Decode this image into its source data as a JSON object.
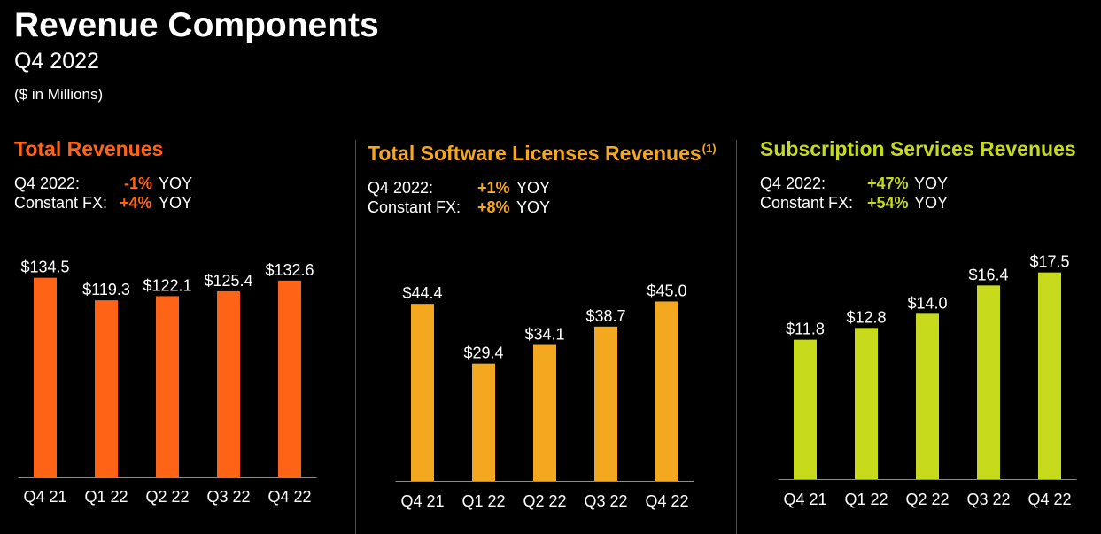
{
  "header": {
    "title": "Revenue Components",
    "subtitle": "Q4 2022",
    "units": "($ in Millions)"
  },
  "colors": {
    "background": "#000000",
    "total": "#ff6315",
    "software": "#f3a81f",
    "subscription": "#c7da1c",
    "axis": "#8c8c8c"
  },
  "panels": [
    {
      "title": "Total Revenues",
      "footnote": "",
      "stats": [
        {
          "label": "Q4 2022:",
          "value": "-1%",
          "suffix": "YOY"
        },
        {
          "label": "Constant FX:",
          "value": "+4%",
          "suffix": "YOY"
        }
      ]
    },
    {
      "title": "Total Software Licenses Revenues",
      "footnote": "(1)",
      "stats": [
        {
          "label": "Q4 2022:",
          "value": "+1%",
          "suffix": "YOY"
        },
        {
          "label": "Constant FX:",
          "value": "+8%",
          "suffix": "YOY"
        }
      ]
    },
    {
      "title": "Subscription Services Revenues",
      "footnote": "",
      "stats": [
        {
          "label": "Q4 2022:",
          "value": "+47%",
          "suffix": "YOY"
        },
        {
          "label": "Constant FX:",
          "value": "+54%",
          "suffix": "YOY"
        }
      ]
    }
  ],
  "chart_data": [
    {
      "type": "bar",
      "title": "Total Revenues",
      "categories": [
        "Q4 21",
        "Q1 22",
        "Q2 22",
        "Q3 22",
        "Q4 22"
      ],
      "values": [
        134.5,
        119.3,
        122.1,
        125.4,
        132.6
      ],
      "labels": [
        "$134.5",
        "$119.3",
        "$122.1",
        "$125.4",
        "$132.6"
      ],
      "ylim": [
        0,
        151
      ]
    },
    {
      "type": "bar",
      "title": "Total Software Licenses Revenues",
      "categories": [
        "Q4 21",
        "Q1 22",
        "Q2 22",
        "Q3 22",
        "Q4 22"
      ],
      "values": [
        44.4,
        29.4,
        34.1,
        38.7,
        45.0
      ],
      "labels": [
        "$44.4",
        "$29.4",
        "$34.1",
        "$38.7",
        "$45.0"
      ],
      "ylim": [
        0,
        53.1
      ]
    },
    {
      "type": "bar",
      "title": "Subscription Services Revenues",
      "categories": [
        "Q4 21",
        "Q1 22",
        "Q2 22",
        "Q3 22",
        "Q4 22"
      ],
      "values": [
        11.8,
        12.8,
        14.0,
        16.4,
        17.5
      ],
      "labels": [
        "$11.8",
        "$12.8",
        "$14.0",
        "$16.4",
        "$17.5"
      ],
      "ylim": [
        0,
        20.7
      ]
    }
  ]
}
